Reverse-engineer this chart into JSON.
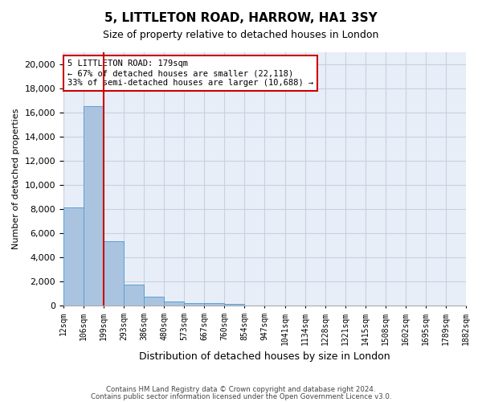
{
  "title": "5, LITTLETON ROAD, HARROW, HA1 3SY",
  "subtitle": "Size of property relative to detached houses in London",
  "xlabel": "Distribution of detached houses by size in London",
  "ylabel": "Number of detached properties",
  "footer_line1": "Contains HM Land Registry data © Crown copyright and database right 2024.",
  "footer_line2": "Contains public sector information licensed under the Open Government Licence v3.0.",
  "bin_labels": [
    "12sqm",
    "106sqm",
    "199sqm",
    "293sqm",
    "386sqm",
    "480sqm",
    "573sqm",
    "667sqm",
    "760sqm",
    "854sqm",
    "947sqm",
    "1041sqm",
    "1134sqm",
    "1228sqm",
    "1321sqm",
    "1415sqm",
    "1508sqm",
    "1602sqm",
    "1695sqm",
    "1789sqm",
    "1882sqm"
  ],
  "bar_heights": [
    8100,
    16500,
    5350,
    1750,
    700,
    320,
    210,
    180,
    130,
    0,
    0,
    0,
    0,
    0,
    0,
    0,
    0,
    0,
    0,
    0
  ],
  "bar_color": "#aac4e0",
  "bar_edge_color": "#5a9fd4",
  "red_line_x": 2,
  "annotation_text": "5 LITTLETON ROAD: 179sqm\n← 67% of detached houses are smaller (22,118)\n33% of semi-detached houses are larger (10,688) →",
  "annotation_box_color": "#ffffff",
  "annotation_box_edge_color": "#cc0000",
  "red_line_color": "#cc0000",
  "grid_color": "#c8d0e0",
  "background_color": "#e8eef8",
  "ylim": [
    0,
    21000
  ],
  "yticks": [
    0,
    2000,
    4000,
    6000,
    8000,
    10000,
    12000,
    14000,
    16000,
    18000,
    20000
  ]
}
